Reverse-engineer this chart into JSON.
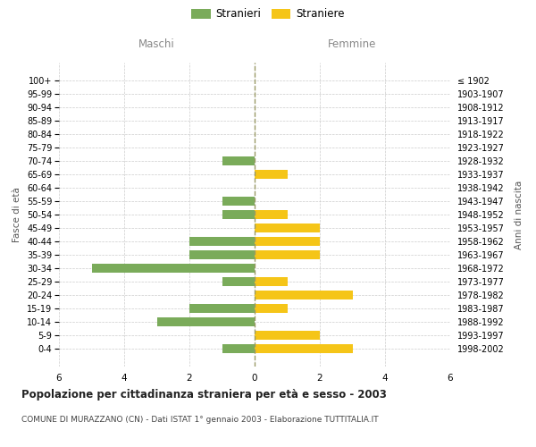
{
  "age_groups": [
    "100+",
    "95-99",
    "90-94",
    "85-89",
    "80-84",
    "75-79",
    "70-74",
    "65-69",
    "60-64",
    "55-59",
    "50-54",
    "45-49",
    "40-44",
    "35-39",
    "30-34",
    "25-29",
    "20-24",
    "15-19",
    "10-14",
    "5-9",
    "0-4"
  ],
  "birth_years": [
    "≤ 1902",
    "1903-1907",
    "1908-1912",
    "1913-1917",
    "1918-1922",
    "1923-1927",
    "1928-1932",
    "1933-1937",
    "1938-1942",
    "1943-1947",
    "1948-1952",
    "1953-1957",
    "1958-1962",
    "1963-1967",
    "1968-1972",
    "1973-1977",
    "1978-1982",
    "1983-1987",
    "1988-1992",
    "1993-1997",
    "1998-2002"
  ],
  "maschi": [
    0,
    0,
    0,
    0,
    0,
    0,
    1,
    0,
    0,
    1,
    1,
    0,
    2,
    2,
    5,
    1,
    0,
    2,
    3,
    0,
    1
  ],
  "femmine": [
    0,
    0,
    0,
    0,
    0,
    0,
    0,
    1,
    0,
    0,
    1,
    2,
    2,
    2,
    0,
    1,
    3,
    1,
    0,
    2,
    3
  ],
  "maschi_color": "#7aab5a",
  "femmine_color": "#f5c518",
  "background_color": "#ffffff",
  "grid_color": "#cccccc",
  "center_line_color": "#999966",
  "header_color": "#888888",
  "title": "Popolazione per cittadinanza straniera per età e sesso - 2003",
  "subtitle": "COMUNE DI MURAZZANO (CN) - Dati ISTAT 1° gennaio 2003 - Elaborazione TUTTITALIA.IT",
  "xlabel_left": "Maschi",
  "xlabel_right": "Femmine",
  "ylabel_left": "Fasce di età",
  "ylabel_right": "Anni di nascita",
  "legend_stranieri": "Stranieri",
  "legend_straniere": "Straniere",
  "xlim": 6
}
